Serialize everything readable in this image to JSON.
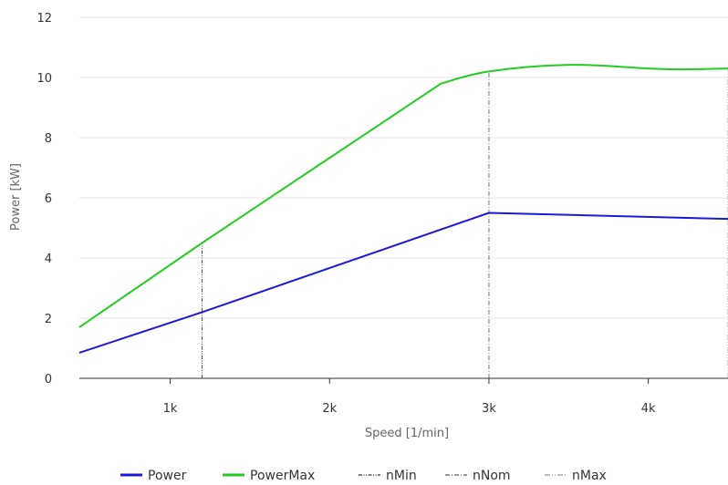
{
  "chart_data": {
    "type": "line",
    "xlabel": "Speed [1/min]",
    "ylabel": "Power [kW]",
    "xlim": [
      430,
      4500
    ],
    "ylim": [
      0,
      12
    ],
    "x_ticks": [
      {
        "value": 1000,
        "label": "1k"
      },
      {
        "value": 2000,
        "label": "2k"
      },
      {
        "value": 3000,
        "label": "3k"
      },
      {
        "value": 4000,
        "label": "4k"
      }
    ],
    "y_ticks": [
      {
        "value": 0,
        "label": "0"
      },
      {
        "value": 2,
        "label": "2"
      },
      {
        "value": 4,
        "label": "4"
      },
      {
        "value": 6,
        "label": "6"
      },
      {
        "value": 8,
        "label": "8"
      },
      {
        "value": 10,
        "label": "10"
      },
      {
        "value": 12,
        "label": "12"
      }
    ],
    "grid": {
      "horizontal": true,
      "vertical": false
    },
    "legend_position": "bottom-center",
    "series": [
      {
        "name": "Power",
        "color": "#1a1adf",
        "style": "solid",
        "x": [
          430,
          1200,
          3000,
          4500
        ],
        "y": [
          0.85,
          2.2,
          5.5,
          5.3
        ]
      },
      {
        "name": "PowerMax",
        "color": "#22cc22",
        "style": "solid",
        "smooth": true,
        "x": [
          430,
          1200,
          2700,
          3000,
          3500,
          4000,
          4200,
          4500
        ],
        "y": [
          1.7,
          4.5,
          9.8,
          10.2,
          10.42,
          10.3,
          10.27,
          10.3
        ]
      }
    ],
    "markers": [
      {
        "name": "nMin",
        "x": 1200,
        "y_top": 4.5,
        "color": "#555555",
        "dash": "4,1.5,1,1.5,1,1.5"
      },
      {
        "name": "nNom",
        "x": 3000,
        "y_top": 10.2,
        "color": "#777777",
        "dash": "5,2,1,2"
      },
      {
        "name": "nMax",
        "x": 4500,
        "y_top": 10.3,
        "color": "#aaaaaa",
        "dash": "6,2,1,2,1,2"
      }
    ]
  }
}
